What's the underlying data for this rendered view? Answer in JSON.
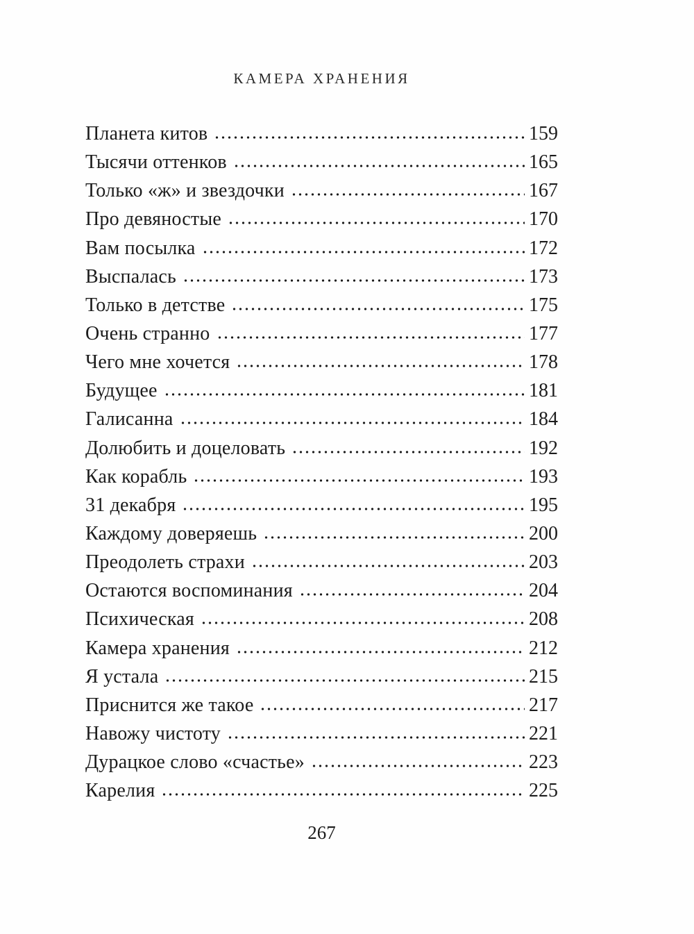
{
  "page": {
    "header_title": "КАМЕРА ХРАНЕНИЯ",
    "footer_page_number": "267"
  },
  "toc": {
    "entries": [
      {
        "title": "Планета китов",
        "page": "159"
      },
      {
        "title": "Тысячи оттенков",
        "page": "165"
      },
      {
        "title": "Только «ж» и звездочки",
        "page": "167"
      },
      {
        "title": "Про девяностые",
        "page": "170"
      },
      {
        "title": "Вам посылка",
        "page": "172"
      },
      {
        "title": "Выспалась",
        "page": "173"
      },
      {
        "title": "Только в детстве",
        "page": "175"
      },
      {
        "title": "Очень странно",
        "page": "177"
      },
      {
        "title": "Чего мне хочется",
        "page": "178"
      },
      {
        "title": "Будущее",
        "page": "181"
      },
      {
        "title": "Галисанна",
        "page": "184"
      },
      {
        "title": "Долюбить и доцеловать",
        "page": "192"
      },
      {
        "title": "Как корабль",
        "page": "193"
      },
      {
        "title": "31 декабря",
        "page": "195"
      },
      {
        "title": "Каждому доверяешь",
        "page": "200"
      },
      {
        "title": "Преодолеть страхи",
        "page": "203"
      },
      {
        "title": "Остаются воспоминания",
        "page": "204"
      },
      {
        "title": "Психическая",
        "page": "208"
      },
      {
        "title": "Камера хранения",
        "page": "212"
      },
      {
        "title": "Я устала",
        "page": "215"
      },
      {
        "title": "Приснится же такое",
        "page": "217"
      },
      {
        "title": "Навожу чистоту",
        "page": "221"
      },
      {
        "title": "Дурацкое слово «счастье»",
        "page": "223"
      },
      {
        "title": "Карелия",
        "page": "225"
      }
    ]
  }
}
